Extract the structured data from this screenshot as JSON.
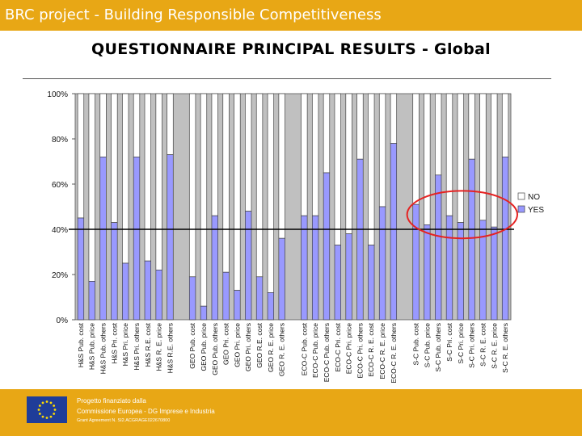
{
  "header": {
    "title": "BRC project - Building Responsible Competitiveness"
  },
  "slide": {
    "title": "QUESTIONNAIRE PRINCIPAL RESULTS - Global"
  },
  "footer": {
    "line1": "Progetto finanziato dalla",
    "line2": "Commissione Europea - DG Imprese e Industria",
    "line3": "Grant Agreement N. SI2.ACGRAGE022670800"
  },
  "colors": {
    "banner": "#e8a715",
    "yes": "#9999ff",
    "no": "#c0c0c0",
    "highlight": "#e52222",
    "flag": "#1f3d99",
    "flag_stars": "#ffdd00"
  },
  "chart_data": {
    "type": "bar",
    "stacked": true,
    "percent_stacked": true,
    "categories": [
      "H&S Pub. cost",
      "H&S Pub. price",
      "H&S Pub. others",
      "H&S Pri. cost",
      "H&S Pri. price",
      "H&S Pri. others",
      "H&S R.E. cost",
      "H&S R. E. price",
      "H&S R.E. others",
      "",
      "GEO Pub. cost",
      "GEO Pub. price",
      "GEO Pub. others",
      "GEO Pri. cost",
      "GEO Pri. price",
      "GEO Pri. others",
      "GEO R.E. cost",
      "GEO R. E. price",
      "GEO R. E. others",
      "",
      "ECO-C Pub. cost",
      "ECO-C Pub. price",
      "ECO-C Pub. others",
      "ECO-C Pri. cost",
      "ECO-C Pri. price",
      "ECO-C Pri. others",
      "ECO-C R. E. cost",
      "ECO-C R. E. price",
      "ECO-C R. E. others",
      "",
      "S-C Pub. cost",
      "S-C Pub. price",
      "S-C Pub. others",
      "S-C Pri. cost",
      "S-C Pri. price",
      "S-C Pri. others",
      "S-C R. E. cost",
      "S-C R. E. price",
      "S-C R. E. others"
    ],
    "series": [
      {
        "name": "YES",
        "values": [
          45,
          17,
          72,
          43,
          25,
          72,
          26,
          22,
          73,
          0,
          19,
          6,
          46,
          21,
          13,
          48,
          19,
          12,
          36,
          0,
          46,
          46,
          65,
          33,
          38,
          71,
          33,
          50,
          78,
          0,
          51,
          42,
          64,
          46,
          43,
          71,
          44,
          41,
          72
        ]
      },
      {
        "name": "NO",
        "values": [
          55,
          83,
          28,
          57,
          75,
          28,
          74,
          78,
          27,
          0,
          81,
          94,
          54,
          79,
          87,
          52,
          81,
          88,
          64,
          0,
          54,
          54,
          35,
          67,
          62,
          29,
          67,
          50,
          22,
          0,
          49,
          58,
          36,
          54,
          57,
          29,
          56,
          59,
          28
        ]
      }
    ],
    "legend": [
      "NO",
      "YES"
    ],
    "legend_position": "right",
    "yticks": [
      "0%",
      "20%",
      "40%",
      "60%",
      "80%",
      "100%"
    ],
    "ylim": [
      0,
      100
    ],
    "reference_line": 40,
    "highlight": "S-C group, red ellipse around 40%-60% band",
    "plot_background": "#c0c0c0"
  }
}
